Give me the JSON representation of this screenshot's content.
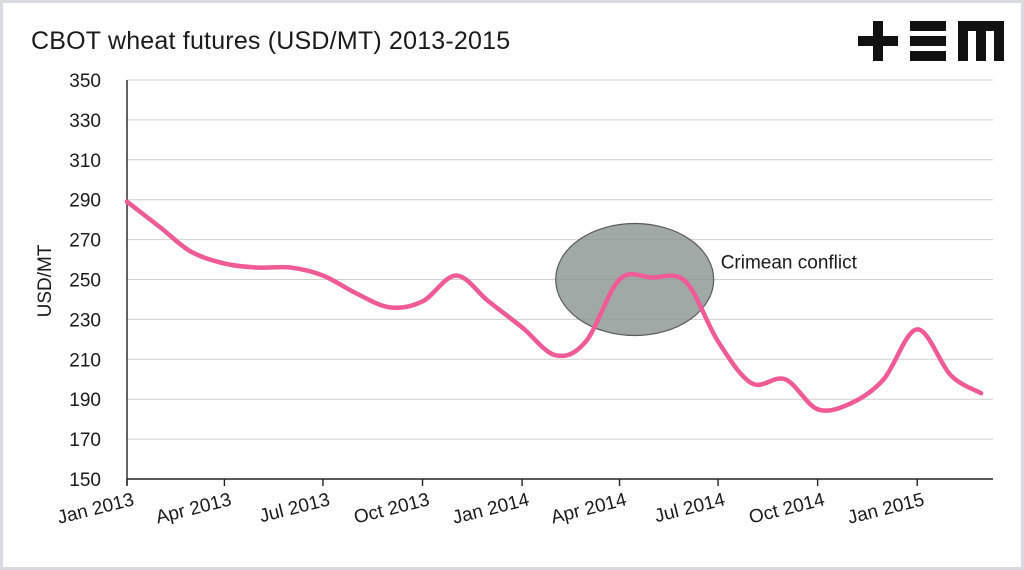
{
  "chart_data": {
    "type": "line",
    "title": "CBOT wheat futures (USD/MT) 2013-2015",
    "ylabel": "USD/MT",
    "xlabel": "",
    "ylim": [
      150,
      350
    ],
    "yticks": [
      150,
      170,
      190,
      210,
      230,
      250,
      270,
      290,
      310,
      330,
      350
    ],
    "xticks": [
      "Jan 2013",
      "Apr 2013",
      "Jul 2013",
      "Oct 2013",
      "Jan 2014",
      "Apr 2014",
      "Jul 2014",
      "Oct 2014",
      "Jan 2015"
    ],
    "grid": "horizontal",
    "series": [
      {
        "color": "#f05a96",
        "x": [
          "2013-01",
          "2013-02",
          "2013-03",
          "2013-04",
          "2013-05",
          "2013-06",
          "2013-07",
          "2013-08",
          "2013-09",
          "2013-10",
          "2013-11",
          "2013-12",
          "2014-01",
          "2014-02",
          "2014-03",
          "2014-04",
          "2014-05",
          "2014-06",
          "2014-07",
          "2014-08",
          "2014-09",
          "2014-10",
          "2014-11",
          "2014-12",
          "2015-01",
          "2015-02",
          "2015-03"
        ],
        "values": [
          289,
          276,
          264,
          258,
          256,
          256,
          252,
          243,
          236,
          239,
          252,
          239,
          226,
          212,
          219,
          250,
          251,
          249,
          219,
          198,
          200,
          185,
          188,
          200,
          225,
          202,
          193
        ]
      }
    ],
    "annotations": [
      {
        "label": "Crimean conflict",
        "shape": "ellipse",
        "fill": "#8c9694",
        "center_x": "2014-04-15",
        "center_y": 250
      }
    ]
  },
  "logo": {
    "text": "+EM",
    "color": "#111111"
  }
}
